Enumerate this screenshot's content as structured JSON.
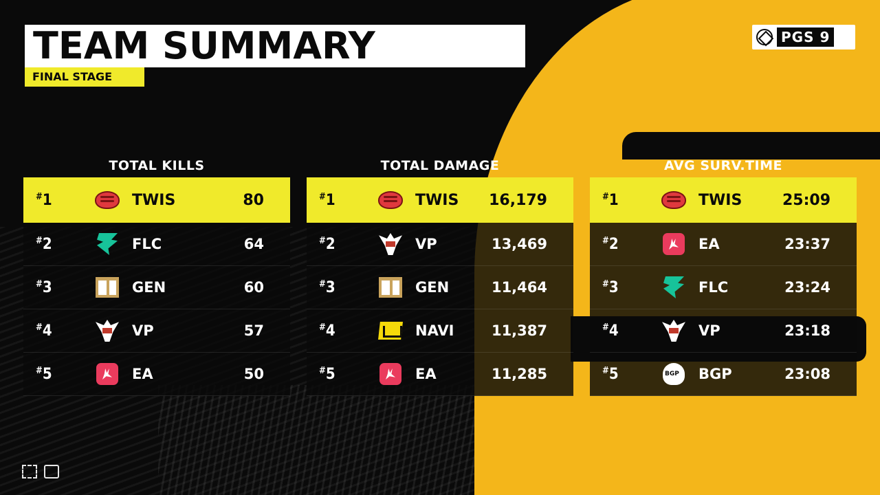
{
  "header": {
    "title": "TEAM SUMMARY",
    "subtitle": "FINAL STAGE",
    "brand": "PGS 9"
  },
  "colors": {
    "accent_yellow": "#f0ea2b",
    "orange": "#f4b61a",
    "background": "#0a0a0a"
  },
  "panels": [
    {
      "heading": "TOTAL KILLS",
      "rows": [
        {
          "rank": "1",
          "team": "TWIS",
          "icon": "twis-brain-icon",
          "value": "80"
        },
        {
          "rank": "2",
          "team": "FLC",
          "icon": "flc-falcon-icon",
          "value": "64"
        },
        {
          "rank": "3",
          "team": "GEN",
          "icon": "gen-logo-icon",
          "value": "60"
        },
        {
          "rank": "4",
          "team": "VP",
          "icon": "vp-horse-icon",
          "value": "57"
        },
        {
          "rank": "5",
          "team": "EA",
          "icon": "ea-rabbit-icon",
          "value": "50"
        }
      ]
    },
    {
      "heading": "TOTAL DAMAGE",
      "rows": [
        {
          "rank": "1",
          "team": "TWIS",
          "icon": "twis-brain-icon",
          "value": "16,179"
        },
        {
          "rank": "2",
          "team": "VP",
          "icon": "vp-horse-icon",
          "value": "13,469"
        },
        {
          "rank": "3",
          "team": "GEN",
          "icon": "gen-logo-icon",
          "value": "11,464"
        },
        {
          "rank": "4",
          "team": "NAVI",
          "icon": "navi-logo-icon",
          "value": "11,387"
        },
        {
          "rank": "5",
          "team": "EA",
          "icon": "ea-rabbit-icon",
          "value": "11,285"
        }
      ]
    },
    {
      "heading": "AVG SURV.TIME",
      "rows": [
        {
          "rank": "1",
          "team": "TWIS",
          "icon": "twis-brain-icon",
          "value": "25:09"
        },
        {
          "rank": "2",
          "team": "EA",
          "icon": "ea-rabbit-icon",
          "value": "23:37"
        },
        {
          "rank": "3",
          "team": "FLC",
          "icon": "flc-falcon-icon",
          "value": "23:24"
        },
        {
          "rank": "4",
          "team": "VP",
          "icon": "vp-horse-icon",
          "value": "23:18"
        },
        {
          "rank": "5",
          "team": "BGP",
          "icon": "bgp-logo-icon",
          "value": "23:08"
        }
      ]
    }
  ]
}
